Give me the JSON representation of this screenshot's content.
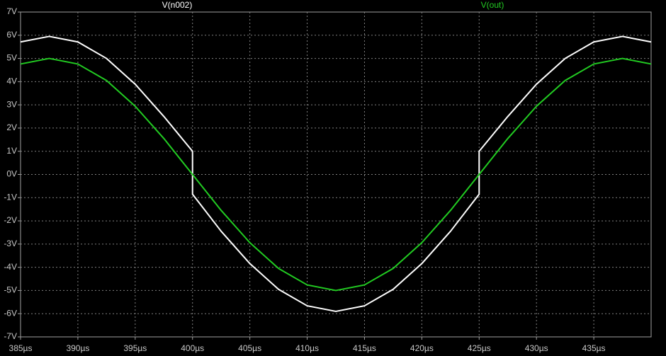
{
  "chart_data": {
    "type": "line",
    "x": [
      385,
      387.5,
      390,
      392.5,
      395,
      397.5,
      400,
      400,
      402.5,
      405,
      407.5,
      410,
      412.5,
      415,
      417.5,
      420,
      422.5,
      425,
      425,
      427.5,
      430,
      432.5,
      435,
      437.5,
      440
    ],
    "series": [
      {
        "name": "V(n002)",
        "color": "#ffffff",
        "values": [
          5.71,
          5.95,
          5.71,
          5.0,
          3.89,
          2.5,
          1.0,
          -0.85,
          -2.45,
          -3.84,
          -4.95,
          -5.66,
          -5.9,
          -5.66,
          -4.95,
          -3.84,
          -2.45,
          -0.85,
          1.0,
          2.5,
          3.89,
          5.0,
          5.71,
          5.95,
          5.71
        ]
      },
      {
        "name": "V(out)",
        "color": "#22cc22",
        "values": [
          4.76,
          5.0,
          4.76,
          4.05,
          2.94,
          1.55,
          0,
          0,
          -1.55,
          -2.94,
          -4.05,
          -4.76,
          -5.0,
          -4.76,
          -4.05,
          -2.94,
          -1.55,
          0,
          0,
          1.55,
          2.94,
          4.05,
          4.76,
          5.0,
          4.76
        ]
      }
    ],
    "xlim": [
      385,
      440
    ],
    "ylim": [
      -7,
      7
    ],
    "xticks": [
      {
        "value": 385,
        "label": "385µs"
      },
      {
        "value": 390,
        "label": "390µs"
      },
      {
        "value": 395,
        "label": "395µs"
      },
      {
        "value": 400,
        "label": "400µs"
      },
      {
        "value": 405,
        "label": "405µs"
      },
      {
        "value": 410,
        "label": "410µs"
      },
      {
        "value": 415,
        "label": "415µs"
      },
      {
        "value": 420,
        "label": "420µs"
      },
      {
        "value": 425,
        "label": "425µs"
      },
      {
        "value": 430,
        "label": "430µs"
      },
      {
        "value": 435,
        "label": "435µs"
      }
    ],
    "yticks": [
      {
        "value": 7,
        "label": "7V"
      },
      {
        "value": 6,
        "label": "6V"
      },
      {
        "value": 5,
        "label": "5V"
      },
      {
        "value": 4,
        "label": "4V"
      },
      {
        "value": 3,
        "label": "3V"
      },
      {
        "value": 2,
        "label": "2V"
      },
      {
        "value": 1,
        "label": "1V"
      },
      {
        "value": 0,
        "label": "0V"
      },
      {
        "value": -1,
        "label": "-1V"
      },
      {
        "value": -2,
        "label": "-2V"
      },
      {
        "value": -3,
        "label": "-3V"
      },
      {
        "value": -4,
        "label": "-4V"
      },
      {
        "value": -5,
        "label": "-5V"
      },
      {
        "value": -6,
        "label": "-6V"
      },
      {
        "value": -7,
        "label": "-7V"
      }
    ],
    "grid": true
  }
}
